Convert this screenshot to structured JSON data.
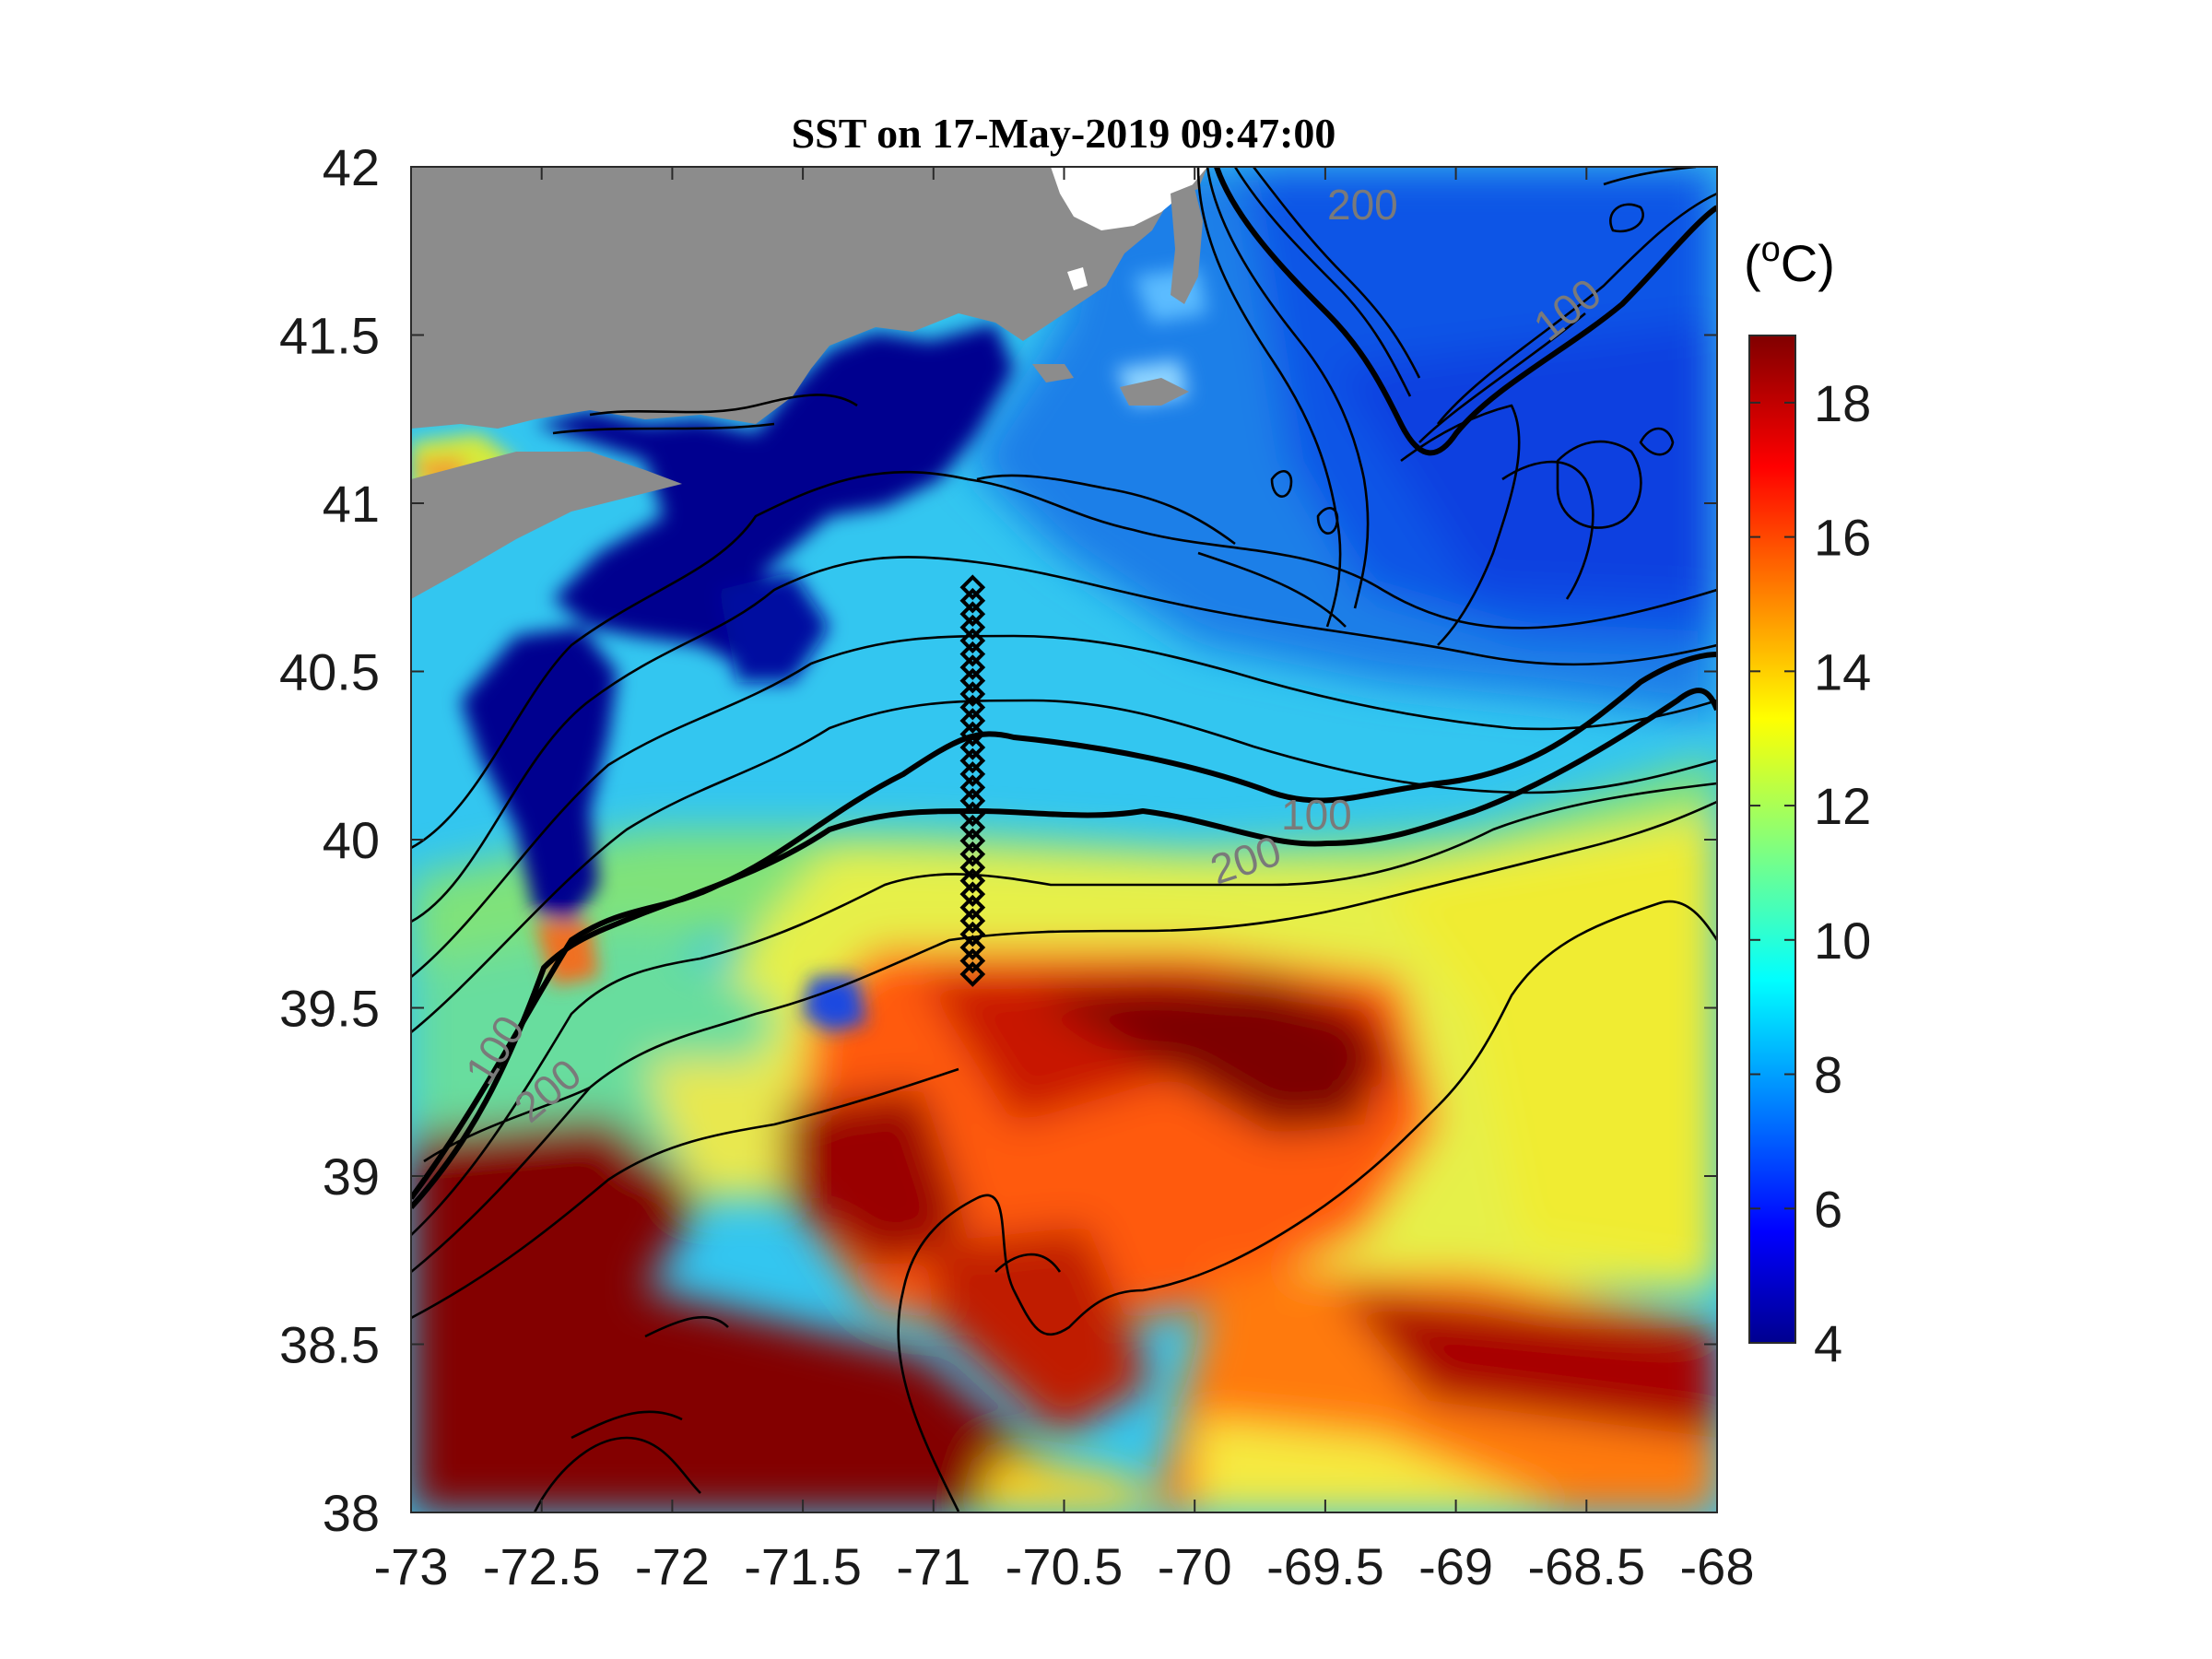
{
  "title": "SST on 17-May-2019 09:47:00",
  "x_ticks": [
    "-73",
    "-72.5",
    "-72",
    "-71.5",
    "-71",
    "-70.5",
    "-70",
    "-69.5",
    "-69",
    "-68.5",
    "-68"
  ],
  "y_ticks": [
    "42",
    "41.5",
    "41",
    "40.5",
    "40",
    "39.5",
    "39",
    "38.5",
    "38"
  ],
  "colorbar": {
    "unit_open": "(",
    "unit_sup": "o",
    "unit_rest": "C)",
    "ticks": [
      "18",
      "16",
      "14",
      "12",
      "10",
      "8",
      "6",
      "4"
    ],
    "range": [
      4,
      19
    ],
    "colormap": "jet"
  },
  "contour_labels": [
    {
      "text": "200"
    },
    {
      "text": "100"
    },
    {
      "text": "100"
    },
    {
      "text": "200"
    },
    {
      "text": "100"
    },
    {
      "text": "200"
    }
  ],
  "transect": {
    "lon": -70.85,
    "lat_start": 39.6,
    "lat_end": 40.75,
    "points": 30
  },
  "colors": {
    "land": "#8c8c8c",
    "ocean_cold": "#00008f",
    "ocean_warm": "#800000",
    "contour": "#000000"
  }
}
